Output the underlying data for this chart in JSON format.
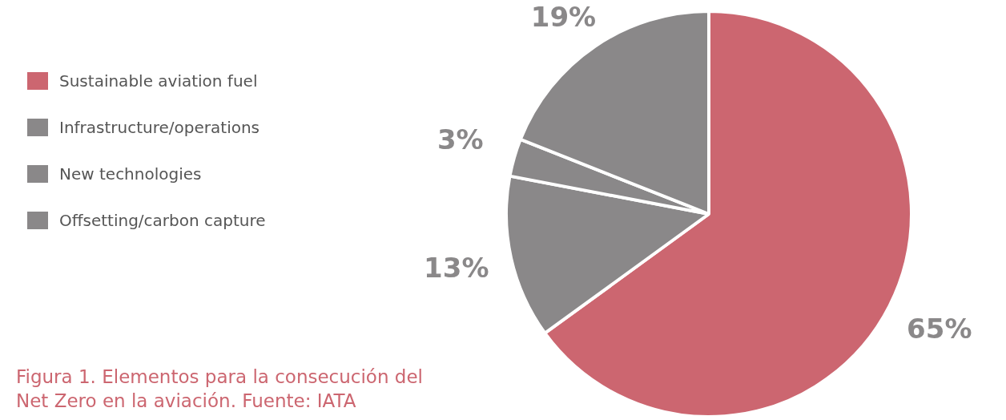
{
  "chart_data": {
    "type": "pie",
    "categories": [
      "Sustainable aviation fuel",
      "Infrastructure/operations",
      "New technologies",
      "Offsetting/carbon capture"
    ],
    "values": [
      65,
      13,
      3,
      19
    ],
    "value_labels": [
      "65%",
      "13%",
      "3%",
      "19%"
    ],
    "colors": [
      "#cc6670",
      "#8a8889",
      "#8a8889",
      "#8a8889"
    ],
    "legend": "left",
    "annotations": [
      "Figura 1. Elementos para la consecución del Net Zero en la aviación. Fuente: IATA"
    ]
  }
}
